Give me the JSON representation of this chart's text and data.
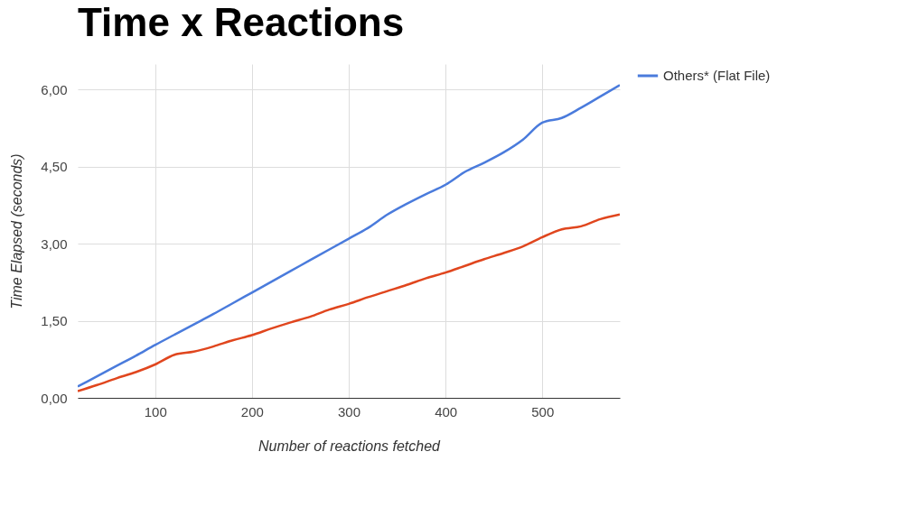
{
  "chart_data": {
    "type": "line",
    "title": "Time x Reactions",
    "xlabel": "Number of reactions fetched",
    "ylabel": "Time Elapsed (seconds)",
    "x": [
      20,
      40,
      60,
      80,
      100,
      120,
      140,
      160,
      180,
      200,
      220,
      240,
      260,
      280,
      300,
      320,
      340,
      360,
      380,
      400,
      420,
      440,
      460,
      480,
      500,
      520,
      540,
      560,
      580
    ],
    "series": [
      {
        "name": "Others* (Flat File)",
        "color": "#4a7bdc",
        "values": [
          0.22,
          0.42,
          0.62,
          0.82,
          1.03,
          1.23,
          1.43,
          1.63,
          1.84,
          2.05,
          2.26,
          2.47,
          2.68,
          2.89,
          3.1,
          3.31,
          3.57,
          3.78,
          3.97,
          4.15,
          4.4,
          4.58,
          4.78,
          5.03,
          5.36,
          5.45,
          5.65,
          5.87,
          6.09
        ]
      },
      {
        "color": "#e0461e",
        "values": [
          0.13,
          0.25,
          0.38,
          0.5,
          0.65,
          0.84,
          0.9,
          1.0,
          1.12,
          1.22,
          1.35,
          1.47,
          1.58,
          1.72,
          1.83,
          1.96,
          2.08,
          2.2,
          2.33,
          2.44,
          2.57,
          2.7,
          2.82,
          2.95,
          3.13,
          3.28,
          3.34,
          3.48,
          3.57
        ]
      }
    ],
    "xlim": [
      20,
      580
    ],
    "xticks": [
      100,
      200,
      300,
      400,
      500
    ],
    "ylim": [
      0,
      6.5
    ],
    "yticks": [
      {
        "value": 0,
        "label": "0,00"
      },
      {
        "value": 1.5,
        "label": "1,50"
      },
      {
        "value": 3,
        "label": "3,00"
      },
      {
        "value": 4.5,
        "label": "4,50"
      },
      {
        "value": 6,
        "label": "6,00"
      }
    ],
    "grid": true,
    "legend": "top right",
    "line_style": "solid",
    "marker": "none"
  }
}
